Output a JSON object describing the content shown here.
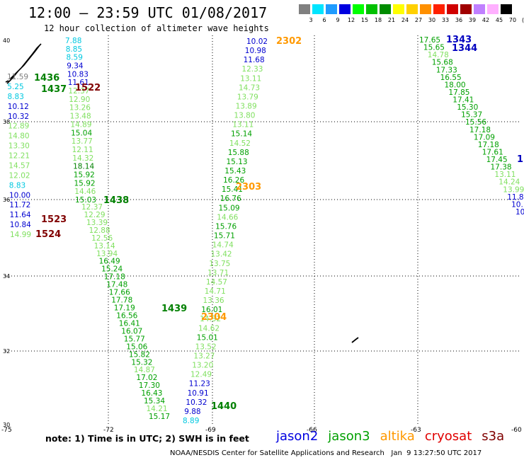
{
  "title": "12:00 – 23:59 UTC 01/08/2017",
  "subtitle": "12 hour collection of altimeter wave heights",
  "legend": {
    "labels": [
      "3",
      "6",
      "9",
      "12",
      "15",
      "18",
      "21",
      "24",
      "27",
      "30",
      "33",
      "36",
      "39",
      "42",
      "45",
      "70",
      "(ft)"
    ],
    "colors": [
      "#808080",
      "#00e5ff",
      "#1e9bff",
      "#0000e0",
      "#00ff00",
      "#00c000",
      "#008c00",
      "#ffff00",
      "#ffd000",
      "#ff9000",
      "#ff2000",
      "#d00000",
      "#a00000",
      "#c080ff",
      "#ffb0ff",
      "#000000"
    ]
  },
  "axes": {
    "lat_labels": [
      "40",
      "38",
      "36",
      "34",
      "32",
      "30"
    ],
    "lon_labels": [
      "-75",
      "-72",
      "-69",
      "-66",
      "-63",
      "-60"
    ]
  },
  "tracks": {
    "west": [
      {
        "v": "7.88",
        "c": "#00c8e0"
      },
      {
        "v": "8.85",
        "c": "#00c8e0"
      },
      {
        "v": "8.59",
        "c": "#00c8e0"
      },
      {
        "v": "9.34",
        "c": "#0000d0"
      },
      {
        "v": "10.83",
        "c": "#0000d0"
      },
      {
        "v": "11.61",
        "c": "#0000d0"
      },
      {
        "v": "12.37",
        "c": "#80e060"
      },
      {
        "v": "12.90",
        "c": "#80e060"
      },
      {
        "v": "13.26",
        "c": "#80e060"
      },
      {
        "v": "13.48",
        "c": "#80e060"
      },
      {
        "v": "14.89",
        "c": "#80e060"
      },
      {
        "v": "15.04",
        "c": "#00a000"
      },
      {
        "v": "13.77",
        "c": "#80e060"
      },
      {
        "v": "12.11",
        "c": "#80e060"
      },
      {
        "v": "14.32",
        "c": "#80e060"
      },
      {
        "v": "18.14",
        "c": "#008000"
      },
      {
        "v": "15.92",
        "c": "#00a000"
      },
      {
        "v": "15.92",
        "c": "#00a000"
      },
      {
        "v": "14.46",
        "c": "#80e060"
      },
      {
        "v": "15.03",
        "c": "#00a000"
      }
    ],
    "west2": [
      {
        "v": "11.59",
        "c": "#808080"
      },
      {
        "v": "5.25",
        "c": "#00c8e0"
      },
      {
        "v": "8.83",
        "c": "#00c8e0"
      },
      {
        "v": "10.12",
        "c": "#0000d0"
      },
      {
        "v": "10.32",
        "c": "#0000d0"
      },
      {
        "v": "12.89",
        "c": "#80e060"
      },
      {
        "v": "14.80",
        "c": "#80e060"
      },
      {
        "v": "13.30",
        "c": "#80e060"
      },
      {
        "v": "12.21",
        "c": "#80e060"
      },
      {
        "v": "14.57",
        "c": "#80e060"
      },
      {
        "v": "12.02",
        "c": "#80e060"
      },
      {
        "v": "8.83",
        "c": "#00c8e0"
      },
      {
        "v": "10.00",
        "c": "#0000d0"
      },
      {
        "v": "11.72",
        "c": "#0000d0"
      },
      {
        "v": "11.64",
        "c": "#0000d0"
      },
      {
        "v": "10.84",
        "c": "#0000d0"
      },
      {
        "v": "14.99",
        "c": "#80e060"
      }
    ],
    "diagonal": [
      {
        "v": "12.37",
        "c": "#80e060"
      },
      {
        "v": "12.29",
        "c": "#80e060"
      },
      {
        "v": "13.39",
        "c": "#80e060"
      },
      {
        "v": "12.88",
        "c": "#80e060"
      },
      {
        "v": "12.56",
        "c": "#80e060"
      },
      {
        "v": "13.14",
        "c": "#80e060"
      },
      {
        "v": "13.94",
        "c": "#80e060"
      },
      {
        "v": "16.49",
        "c": "#00a000"
      },
      {
        "v": "15.24",
        "c": "#00a000"
      },
      {
        "v": "17.18",
        "c": "#00a000"
      },
      {
        "v": "17.48",
        "c": "#00a000"
      },
      {
        "v": "17.66",
        "c": "#00a000"
      },
      {
        "v": "17.78",
        "c": "#00a000"
      },
      {
        "v": "17.19",
        "c": "#00a000"
      },
      {
        "v": "16.56",
        "c": "#00a000"
      },
      {
        "v": "16.41",
        "c": "#00a000"
      },
      {
        "v": "16.07",
        "c": "#00a000"
      },
      {
        "v": "15.77",
        "c": "#00a000"
      },
      {
        "v": "15.06",
        "c": "#00a000"
      },
      {
        "v": "15.82",
        "c": "#00a000"
      },
      {
        "v": "15.32",
        "c": "#00a000"
      },
      {
        "v": "14.87",
        "c": "#80e060"
      },
      {
        "v": "17.02",
        "c": "#00a000"
      },
      {
        "v": "17.30",
        "c": "#00a000"
      },
      {
        "v": "16.43",
        "c": "#00a000"
      },
      {
        "v": "15.34",
        "c": "#00a000"
      },
      {
        "v": "14.21",
        "c": "#80e060"
      },
      {
        "v": "15.17",
        "c": "#00a000"
      }
    ],
    "j3_2302": [
      {
        "v": "10.02",
        "c": "#0000d0"
      },
      {
        "v": "10.98",
        "c": "#0000d0"
      },
      {
        "v": "11.68",
        "c": "#0000d0"
      },
      {
        "v": "12.33",
        "c": "#80e060"
      },
      {
        "v": "13.11",
        "c": "#80e060"
      },
      {
        "v": "14.73",
        "c": "#80e060"
      },
      {
        "v": "13.79",
        "c": "#80e060"
      },
      {
        "v": "13.89",
        "c": "#80e060"
      },
      {
        "v": "13.80",
        "c": "#80e060"
      },
      {
        "v": "13.11",
        "c": "#80e060"
      },
      {
        "v": "15.14",
        "c": "#00a000"
      },
      {
        "v": "14.52",
        "c": "#80e060"
      },
      {
        "v": "15.88",
        "c": "#00a000"
      },
      {
        "v": "15.13",
        "c": "#00a000"
      },
      {
        "v": "15.43",
        "c": "#00a000"
      },
      {
        "v": "16.26",
        "c": "#00a000"
      },
      {
        "v": "15.41",
        "c": "#00a000"
      },
      {
        "v": "16.76",
        "c": "#00a000"
      },
      {
        "v": "15.09",
        "c": "#00a000"
      },
      {
        "v": "14.66",
        "c": "#80e060"
      },
      {
        "v": "15.76",
        "c": "#00a000"
      },
      {
        "v": "15.71",
        "c": "#00a000"
      },
      {
        "v": "14.74",
        "c": "#80e060"
      },
      {
        "v": "13.42",
        "c": "#80e060"
      },
      {
        "v": "13.75",
        "c": "#80e060"
      },
      {
        "v": "13.71",
        "c": "#80e060"
      },
      {
        "v": "14.57",
        "c": "#80e060"
      },
      {
        "v": "14.71",
        "c": "#80e060"
      },
      {
        "v": "13.36",
        "c": "#80e060"
      },
      {
        "v": "16.01",
        "c": "#00a000"
      },
      {
        "v": "14.32",
        "c": "#80e060"
      },
      {
        "v": "14.62",
        "c": "#80e060"
      },
      {
        "v": "15.01",
        "c": "#00a000"
      },
      {
        "v": "13.52",
        "c": "#80e060"
      },
      {
        "v": "13.27",
        "c": "#80e060"
      },
      {
        "v": "13.20",
        "c": "#80e060"
      },
      {
        "v": "12.49",
        "c": "#80e060"
      },
      {
        "v": "11.23",
        "c": "#0000d0"
      },
      {
        "v": "10.91",
        "c": "#0000d0"
      },
      {
        "v": "10.32",
        "c": "#0000d0"
      },
      {
        "v": "9.88",
        "c": "#0000d0"
      },
      {
        "v": "8.89",
        "c": "#00c8e0"
      }
    ],
    "east": [
      {
        "v": "17.65",
        "c": "#00a000"
      },
      {
        "v": "15.65",
        "c": "#00a000"
      },
      {
        "v": "14.78",
        "c": "#80e060"
      },
      {
        "v": "15.68",
        "c": "#00a000"
      },
      {
        "v": "17.33",
        "c": "#00a000"
      },
      {
        "v": "16.55",
        "c": "#00a000"
      },
      {
        "v": "18.00",
        "c": "#00a000"
      },
      {
        "v": "17.85",
        "c": "#00a000"
      },
      {
        "v": "17.41",
        "c": "#00a000"
      },
      {
        "v": "15.30",
        "c": "#00a000"
      },
      {
        "v": "15.37",
        "c": "#00a000"
      },
      {
        "v": "15.56",
        "c": "#00a000"
      },
      {
        "v": "17.18",
        "c": "#00a000"
      },
      {
        "v": "17.09",
        "c": "#00a000"
      },
      {
        "v": "17.18",
        "c": "#00a000"
      },
      {
        "v": "17.61",
        "c": "#00a000"
      },
      {
        "v": "17.45",
        "c": "#00a000"
      },
      {
        "v": "17.38",
        "c": "#00a000"
      },
      {
        "v": "13.11",
        "c": "#80e060"
      },
      {
        "v": "14.24",
        "c": "#80e060"
      },
      {
        "v": "13.99",
        "c": "#80e060"
      },
      {
        "v": "11.8",
        "c": "#0000d0"
      },
      {
        "v": "10.",
        "c": "#0000d0"
      },
      {
        "v": "10",
        "c": "#0000d0"
      }
    ]
  },
  "pass_labels": [
    {
      "t": "2302",
      "c": "#ff9900"
    },
    {
      "t": "2303",
      "c": "#ff9900"
    },
    {
      "t": "2304",
      "c": "#ff9900"
    },
    {
      "t": "1343",
      "c": "#0000c0"
    },
    {
      "t": "1344",
      "c": "#0000c0"
    },
    {
      "t": "1436",
      "c": "#008000"
    },
    {
      "t": "1437",
      "c": "#008000"
    },
    {
      "t": "1438",
      "c": "#008000"
    },
    {
      "t": "1439",
      "c": "#008000"
    },
    {
      "t": "1440",
      "c": "#008000"
    },
    {
      "t": "1522",
      "c": "#800000"
    },
    {
      "t": "1523",
      "c": "#800000"
    },
    {
      "t": "1524",
      "c": "#800000"
    },
    {
      "t": "1",
      "c": "#0000c0"
    }
  ],
  "note": "note: 1) Time is in UTC; 2) SWH is in feet",
  "satellites": [
    {
      "name": "jason2",
      "color": "#0000e0"
    },
    {
      "name": "jason3",
      "color": "#00a000"
    },
    {
      "name": "altika",
      "color": "#ff9900"
    },
    {
      "name": "cryosat",
      "color": "#e00000"
    },
    {
      "name": "s3a",
      "color": "#800000"
    }
  ],
  "credit": "NOAA/NESDIS Center for Satellite Applications and Research   Jan  9 13:27:50 UTC 2017"
}
